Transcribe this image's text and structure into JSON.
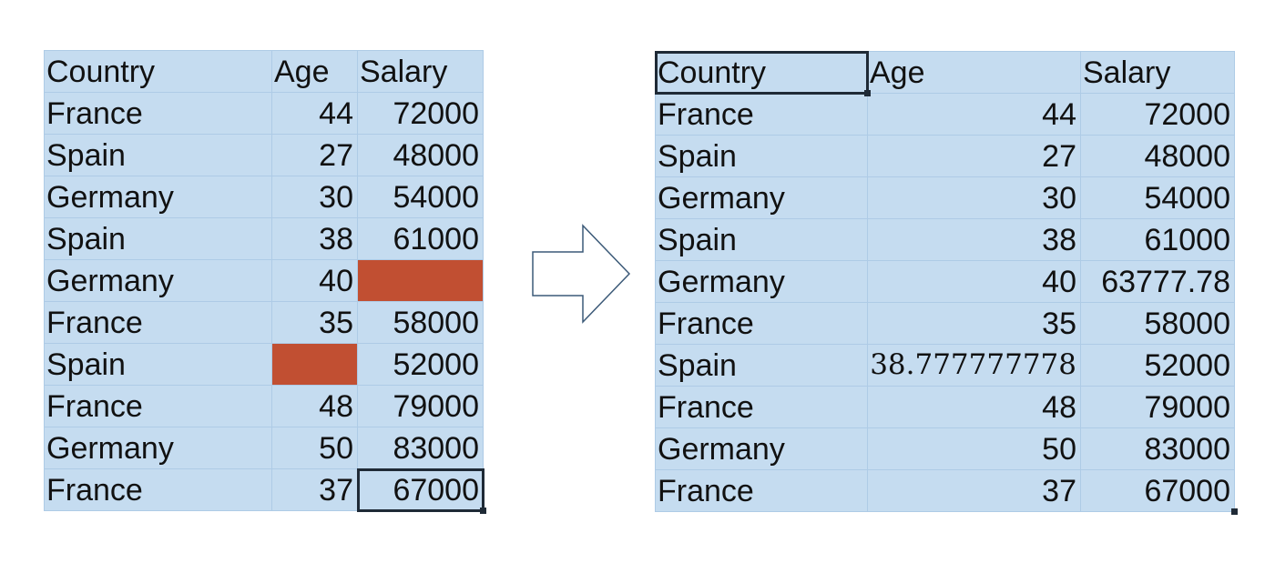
{
  "left_table": {
    "header": [
      "Country",
      "Age",
      "Salary"
    ],
    "rows": [
      [
        "France",
        "44",
        "72000"
      ],
      [
        "Spain",
        "27",
        "48000"
      ],
      [
        "Germany",
        "30",
        "54000"
      ],
      [
        "Spain",
        "38",
        "61000"
      ],
      [
        "Germany",
        "40",
        ""
      ],
      [
        "France",
        "35",
        "58000"
      ],
      [
        "Spain",
        "",
        "52000"
      ],
      [
        "France",
        "48",
        "79000"
      ],
      [
        "Germany",
        "50",
        "83000"
      ],
      [
        "France",
        "37",
        "67000"
      ]
    ],
    "missing_color": "#c14f32"
  },
  "right_table": {
    "header": [
      "Country",
      "Age",
      "Salary"
    ],
    "rows": [
      [
        "France",
        "44",
        "72000"
      ],
      [
        "Spain",
        "27",
        "48000"
      ],
      [
        "Germany",
        "30",
        "54000"
      ],
      [
        "Spain",
        "38",
        "61000"
      ],
      [
        "Germany",
        "40",
        "63777.78"
      ],
      [
        "France",
        "35",
        "58000"
      ],
      [
        "Spain",
        "38.777777778",
        "52000"
      ],
      [
        "France",
        "48",
        "79000"
      ],
      [
        "Germany",
        "50",
        "83000"
      ],
      [
        "France",
        "37",
        "67000"
      ]
    ]
  },
  "colors": {
    "cell_fill": "#c5dcf0",
    "grid_line": "#aecbe6",
    "selection": "#1f2a36",
    "arrow_stroke": "#3c5a78"
  },
  "arrow": {
    "icon": "right-arrow-outline-icon"
  }
}
